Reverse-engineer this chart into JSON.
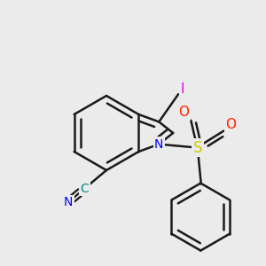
{
  "bg_color": "#ebebeb",
  "bond_color": "#1a1a1a",
  "bond_width": 1.8,
  "dbo": 0.012,
  "atom_colors": {
    "N": "#0000ff",
    "S": "#cccc00",
    "O": "#ff2200",
    "I": "#ee00ee",
    "C_CN": "#008888",
    "N_CN": "#0000ff"
  },
  "figsize": [
    3.0,
    3.0
  ],
  "dpi": 100
}
